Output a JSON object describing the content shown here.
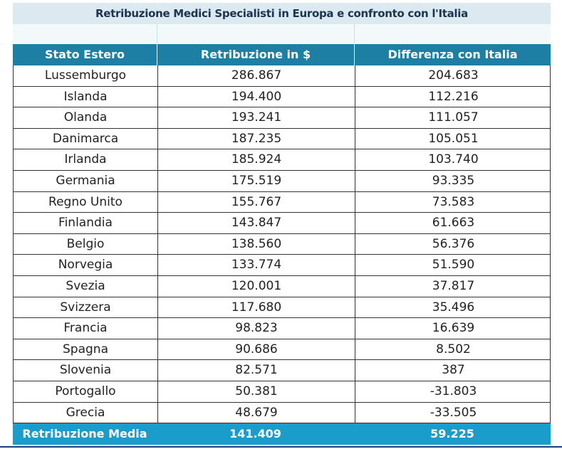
{
  "title": "Retribuzione Medici Specialisti in Europa e confronto con l'Italia",
  "headers": [
    "Stato Estero",
    "Retribuzione in $",
    "Differenza con Italia"
  ],
  "rows": [
    [
      "Lussemburgo",
      "286.867",
      "204.683"
    ],
    [
      "Islanda",
      "194.400",
      "112.216"
    ],
    [
      "Olanda",
      "193.241",
      "111.057"
    ],
    [
      "Danimarca",
      "187.235",
      "105.051"
    ],
    [
      "Irlanda",
      "185.924",
      "103.740"
    ],
    [
      "Germania",
      "175.519",
      "93.335"
    ],
    [
      "Regno Unito",
      "155.767",
      "73.583"
    ],
    [
      "Finlandia",
      "143.847",
      "61.663"
    ],
    [
      "Belgio",
      "138.560",
      "56.376"
    ],
    [
      "Norvegia",
      "133.774",
      "51.590"
    ],
    [
      "Svezia",
      "120.001",
      "37.817"
    ],
    [
      "Svizzera",
      "117.680",
      "35.496"
    ],
    [
      "Francia",
      "98.823",
      "16.639"
    ],
    [
      "Spagna",
      "90.686",
      "8.502"
    ],
    [
      "Slovenia",
      "82.571",
      "387"
    ],
    [
      "Portogallo",
      "50.381",
      "-31.803"
    ],
    [
      "Grecia",
      "48.679",
      "-33.505"
    ]
  ],
  "footer": [
    "Retribuzione Media",
    "141.409",
    "59.225"
  ]
}
